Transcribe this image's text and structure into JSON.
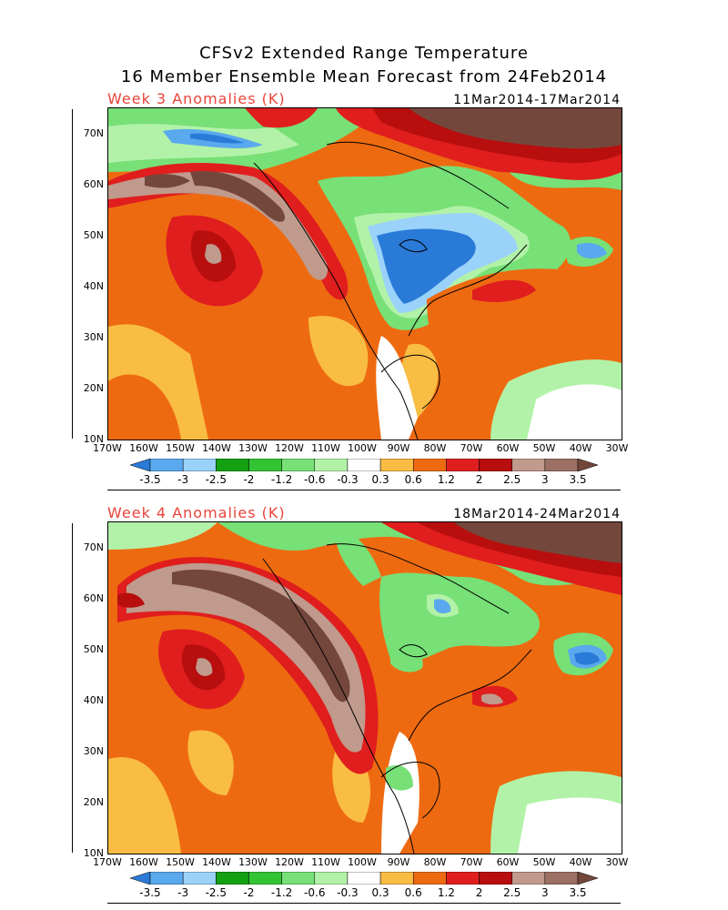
{
  "title": {
    "line1": "CFSv2 Extended Range Temperature",
    "line2": "16 Member Ensemble Mean Forecast from 24Feb2014"
  },
  "axes": {
    "lat_ticks": [
      "70N",
      "60N",
      "50N",
      "40N",
      "30N",
      "20N",
      "10N"
    ],
    "lon_ticks": [
      "170W",
      "160W",
      "150W",
      "140W",
      "130W",
      "120W",
      "110W",
      "100W",
      "90W",
      "80W",
      "70W",
      "60W",
      "50W",
      "40W",
      "30W"
    ]
  },
  "colorbar": {
    "labels": [
      "-3.5",
      "-3",
      "-2.5",
      "-2",
      "-1.2",
      "-0.6",
      "-0.3",
      "0.3",
      "0.6",
      "1.2",
      "2",
      "2.5",
      "3",
      "3.5"
    ],
    "colors": [
      "#2a7ad8",
      "#5aa8ee",
      "#9ad2fa",
      "#13a013",
      "#33c433",
      "#77e077",
      "#b2f2a8",
      "#ffffff",
      "#f9bd44",
      "#ee6a10",
      "#e01e1e",
      "#b80e0e",
      "#c09a8c",
      "#9c7064",
      "#74473c"
    ]
  },
  "panels": [
    {
      "id": "week3",
      "label": "Week 3 Anomalies (K)",
      "dates": "11Mar2014-17Mar2014"
    },
    {
      "id": "week4",
      "label": "Week 4 Anomalies (K)",
      "dates": "18Mar2014-24Mar2014"
    }
  ]
}
